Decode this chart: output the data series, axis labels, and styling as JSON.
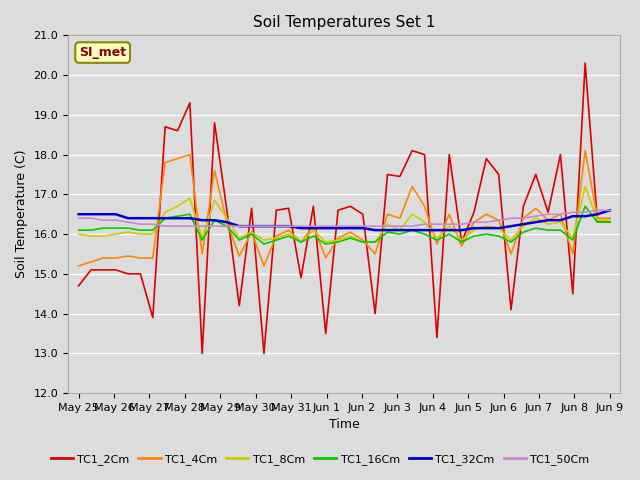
{
  "title": "Soil Temperatures Set 1",
  "xlabel": "Time",
  "ylabel": "Soil Temperature (C)",
  "ylim": [
    12.0,
    21.0
  ],
  "yticks": [
    12.0,
    13.0,
    14.0,
    15.0,
    16.0,
    17.0,
    18.0,
    19.0,
    20.0,
    21.0
  ],
  "bg_color": "#dcdcdc",
  "grid_color": "#ffffff",
  "annotation_text": "SI_met",
  "annotation_bg": "#ffffc0",
  "annotation_border": "#888800",
  "annotation_text_color": "#880000",
  "series_order": [
    "TC1_2Cm",
    "TC1_4Cm",
    "TC1_8Cm",
    "TC1_16Cm",
    "TC1_32Cm",
    "TC1_50Cm"
  ],
  "series_colors": [
    "#dd0000",
    "#ff8800",
    "#cccc00",
    "#00cc00",
    "#0000cc",
    "#cc88cc"
  ],
  "series_lw": [
    1.2,
    1.2,
    1.2,
    1.2,
    1.8,
    1.2
  ],
  "x_labels": [
    "May 25",
    "May 26",
    "May 27",
    "May 28",
    "May 29",
    "May 30",
    "May 31",
    "Jun 1",
    "Jun 2",
    "Jun 3",
    "Jun 4",
    "Jun 5",
    "Jun 6",
    "Jun 7",
    "Jun 8",
    "Jun 9"
  ],
  "x_positions": [
    0,
    1,
    2,
    3,
    4,
    5,
    6,
    7,
    8,
    9,
    10,
    11,
    12,
    13,
    14,
    15
  ],
  "TC1_2Cm": [
    14.7,
    15.1,
    15.1,
    15.1,
    15.0,
    15.0,
    13.9,
    18.7,
    18.6,
    19.3,
    13.0,
    18.8,
    16.6,
    14.2,
    16.65,
    13.0,
    16.6,
    16.65,
    14.9,
    16.7,
    13.5,
    16.6,
    16.7,
    16.5,
    14.0,
    17.5,
    17.45,
    18.1,
    18.0,
    13.4,
    18.0,
    15.8,
    16.55,
    17.9,
    17.5,
    14.1,
    16.7,
    17.5,
    16.55,
    18.0,
    14.5,
    20.3,
    16.3,
    16.3
  ],
  "TC1_4Cm": [
    15.2,
    15.3,
    15.4,
    15.4,
    15.45,
    15.4,
    15.4,
    17.8,
    17.9,
    18.0,
    15.5,
    17.6,
    16.3,
    15.45,
    16.05,
    15.2,
    15.95,
    16.1,
    15.8,
    16.2,
    15.4,
    15.9,
    16.05,
    15.85,
    15.5,
    16.5,
    16.4,
    17.2,
    16.7,
    15.75,
    16.5,
    15.7,
    16.3,
    16.5,
    16.35,
    15.5,
    16.4,
    16.65,
    16.35,
    16.5,
    15.5,
    18.1,
    16.4,
    16.4
  ],
  "TC1_8Cm": [
    16.0,
    15.95,
    15.95,
    16.0,
    16.05,
    16.0,
    16.0,
    16.55,
    16.7,
    16.9,
    15.9,
    16.85,
    16.4,
    15.9,
    16.05,
    15.85,
    15.9,
    16.0,
    15.8,
    16.1,
    15.8,
    15.85,
    15.95,
    15.8,
    15.8,
    16.25,
    16.1,
    16.5,
    16.3,
    15.9,
    16.2,
    15.85,
    16.1,
    16.2,
    16.15,
    15.85,
    16.2,
    16.4,
    16.25,
    16.3,
    15.9,
    17.2,
    16.35,
    16.35
  ],
  "TC1_16Cm": [
    16.1,
    16.1,
    16.15,
    16.15,
    16.15,
    16.1,
    16.1,
    16.4,
    16.45,
    16.5,
    15.85,
    16.35,
    16.2,
    15.85,
    16.0,
    15.75,
    15.85,
    15.95,
    15.8,
    15.95,
    15.75,
    15.8,
    15.9,
    15.8,
    15.8,
    16.05,
    16.0,
    16.1,
    16.0,
    15.85,
    16.0,
    15.8,
    15.95,
    16.0,
    15.95,
    15.8,
    16.05,
    16.15,
    16.1,
    16.1,
    15.85,
    16.7,
    16.3,
    16.3
  ],
  "TC1_32Cm": [
    16.5,
    16.5,
    16.5,
    16.5,
    16.4,
    16.4,
    16.4,
    16.4,
    16.4,
    16.4,
    16.35,
    16.35,
    16.3,
    16.2,
    16.2,
    16.2,
    16.2,
    16.2,
    16.15,
    16.15,
    16.15,
    16.15,
    16.15,
    16.15,
    16.1,
    16.1,
    16.1,
    16.1,
    16.1,
    16.1,
    16.1,
    16.1,
    16.15,
    16.15,
    16.15,
    16.2,
    16.25,
    16.3,
    16.35,
    16.35,
    16.45,
    16.45,
    16.5,
    16.6
  ],
  "TC1_50Cm": [
    16.4,
    16.4,
    16.35,
    16.35,
    16.3,
    16.25,
    16.25,
    16.2,
    16.2,
    16.2,
    16.2,
    16.2,
    16.2,
    16.2,
    16.2,
    16.2,
    16.2,
    16.2,
    16.2,
    16.2,
    16.2,
    16.2,
    16.2,
    16.2,
    16.2,
    16.2,
    16.2,
    16.2,
    16.25,
    16.25,
    16.25,
    16.25,
    16.3,
    16.3,
    16.35,
    16.4,
    16.4,
    16.45,
    16.5,
    16.5,
    16.55,
    16.55,
    16.6,
    16.6
  ]
}
